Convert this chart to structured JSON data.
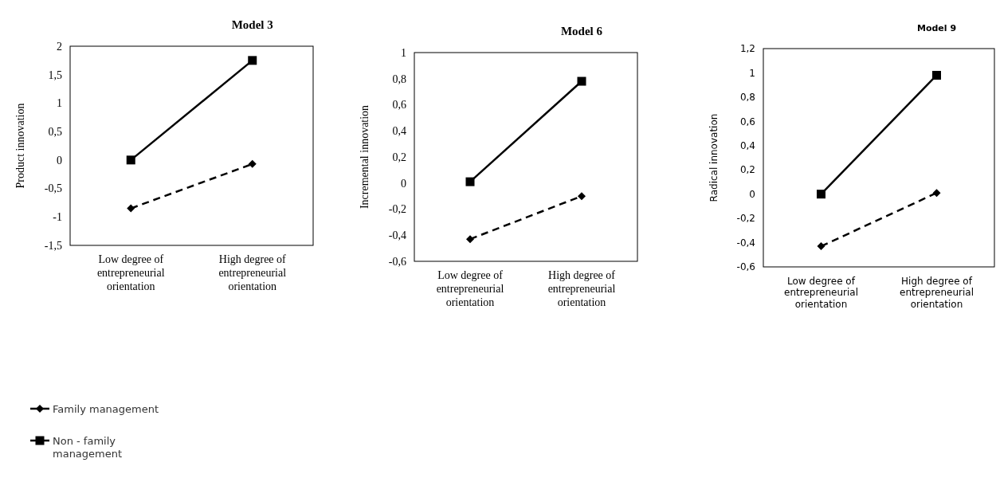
{
  "chart_data": [
    {
      "type": "line",
      "title": "Model 3",
      "ylabel": "Product innovation",
      "categories": [
        "Low degree of entrepreneurial orientation",
        "High degree of entrepreneurial orientation"
      ],
      "series": [
        {
          "name": "Family management",
          "color": "#000000",
          "values": [
            -0.85,
            -0.07
          ],
          "marker": "diamond",
          "line_style": "dashed"
        },
        {
          "name": "Non - family management",
          "color": "#000000",
          "values": [
            0,
            1.75
          ],
          "marker": "square",
          "line_style": "solid"
        }
      ],
      "ylim": [
        -1.5,
        2
      ],
      "yticks": [
        {
          "value": -1.5,
          "label": "-1,5"
        },
        -1,
        {
          "value": -0.5,
          "label": "-0,5"
        },
        0,
        {
          "value": 0.5,
          "label": "0,5"
        },
        1,
        {
          "value": 1.5,
          "label": "1,5"
        },
        2
      ],
      "grid": false,
      "legend": "bottom left"
    },
    {
      "type": "line",
      "title": "Model 6",
      "ylabel": "Incremental innovation",
      "categories": [
        "Low degree of entrepreneurial orientation",
        "High degree of entrepreneurial orientation"
      ],
      "series": [
        {
          "color": "#000000",
          "values": [
            -0.43,
            -0.1
          ],
          "marker": "diamond",
          "line_style": "dashed"
        },
        {
          "color": "#000000",
          "values": [
            0.01,
            0.78
          ],
          "marker": "square",
          "line_style": "solid"
        }
      ],
      "ylim": [
        -0.6,
        1
      ],
      "yticks": [
        {
          "value": -0.6,
          "label": "-0,6"
        },
        {
          "value": -0.4,
          "label": "-0,4"
        },
        {
          "value": -0.2,
          "label": "-0,2"
        },
        0,
        {
          "value": 0.2,
          "label": "0,2"
        },
        {
          "value": 0.4,
          "label": "0,4"
        },
        {
          "value": 0.6,
          "label": "0,6"
        },
        {
          "value": 0.8,
          "label": "0,8"
        },
        1
      ],
      "grid": false
    },
    {
      "type": "line",
      "title": "Model 9",
      "ylabel": "Radical innovation",
      "categories": [
        "Low degree of entrepreneurial orientation",
        "High degree of entrepreneurial orientation"
      ],
      "series": [
        {
          "color": "#000000",
          "values": [
            -0.43,
            0.01
          ],
          "marker": "diamond",
          "line_style": "dashed"
        },
        {
          "color": "#000000",
          "values": [
            0,
            0.98
          ],
          "marker": "square",
          "line_style": "solid"
        }
      ],
      "ylim": [
        -0.6,
        1.2
      ],
      "yticks": [
        {
          "value": -0.6,
          "label": "-0,6"
        },
        {
          "value": -0.4,
          "label": "-0,4"
        },
        {
          "value": -0.2,
          "label": "-0,2"
        },
        0,
        {
          "value": 0.2,
          "label": "0,2"
        },
        {
          "value": 0.4,
          "label": "0,4"
        },
        {
          "value": 0.6,
          "label": "0,6"
        },
        {
          "value": 0.8,
          "label": "0,8"
        },
        1,
        {
          "value": 1.2,
          "label": "1,2"
        }
      ],
      "grid": false
    }
  ]
}
